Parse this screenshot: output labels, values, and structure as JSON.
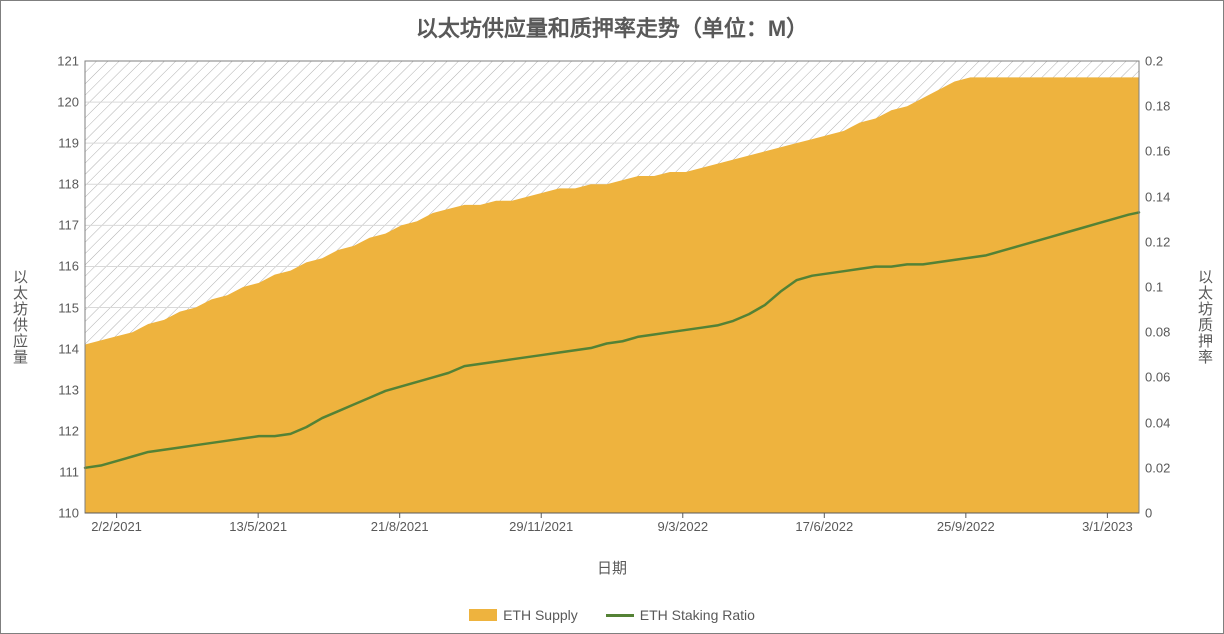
{
  "chart": {
    "type": "area+line-dual-axis",
    "title": "以太坊供应量和质押率走势（单位：M）",
    "title_fontsize": 22,
    "title_color": "#595959",
    "background_color": "#ffffff",
    "plot_border_color": "#7f7f7f",
    "grid_color": "#d9d9d9",
    "hatch_color": "#b0b0b0",
    "x_axis": {
      "label": "日期",
      "ticks": [
        "2/2/2021",
        "13/5/2021",
        "21/8/2021",
        "29/11/2021",
        "9/3/2022",
        "17/6/2022",
        "25/9/2022",
        "3/1/2023"
      ],
      "label_fontsize": 15,
      "tick_fontsize": 13,
      "label_color": "#595959"
    },
    "y_axis_left": {
      "label": "以太坊供应量",
      "min": 110,
      "max": 121,
      "tick_step": 1,
      "ticks": [
        110,
        111,
        112,
        113,
        114,
        115,
        116,
        117,
        118,
        119,
        120,
        121
      ],
      "label_fontsize": 15,
      "tick_fontsize": 13,
      "label_color": "#595959"
    },
    "y_axis_right": {
      "label": "以太坊质押率",
      "min": 0,
      "max": 0.2,
      "tick_step": 0.02,
      "ticks": [
        0,
        0.02,
        0.04,
        0.06,
        0.08,
        0.1,
        0.12,
        0.14,
        0.16,
        0.18,
        0.2
      ],
      "label_fontsize": 15,
      "tick_fontsize": 13,
      "label_color": "#595959"
    },
    "series": {
      "supply": {
        "name": "ETH Supply",
        "type": "area",
        "color": "#eeb33e",
        "fill_opacity": 1.0,
        "axis": "left",
        "data": [
          {
            "x": 0.0,
            "y": 114.1
          },
          {
            "x": 0.015,
            "y": 114.2
          },
          {
            "x": 0.03,
            "y": 114.3
          },
          {
            "x": 0.045,
            "y": 114.4
          },
          {
            "x": 0.06,
            "y": 114.6
          },
          {
            "x": 0.075,
            "y": 114.7
          },
          {
            "x": 0.09,
            "y": 114.9
          },
          {
            "x": 0.105,
            "y": 115.0
          },
          {
            "x": 0.12,
            "y": 115.2
          },
          {
            "x": 0.135,
            "y": 115.3
          },
          {
            "x": 0.15,
            "y": 115.5
          },
          {
            "x": 0.165,
            "y": 115.6
          },
          {
            "x": 0.18,
            "y": 115.8
          },
          {
            "x": 0.195,
            "y": 115.9
          },
          {
            "x": 0.21,
            "y": 116.1
          },
          {
            "x": 0.225,
            "y": 116.2
          },
          {
            "x": 0.24,
            "y": 116.4
          },
          {
            "x": 0.255,
            "y": 116.5
          },
          {
            "x": 0.27,
            "y": 116.7
          },
          {
            "x": 0.285,
            "y": 116.8
          },
          {
            "x": 0.3,
            "y": 117.0
          },
          {
            "x": 0.315,
            "y": 117.1
          },
          {
            "x": 0.33,
            "y": 117.3
          },
          {
            "x": 0.345,
            "y": 117.4
          },
          {
            "x": 0.36,
            "y": 117.5
          },
          {
            "x": 0.375,
            "y": 117.5
          },
          {
            "x": 0.39,
            "y": 117.6
          },
          {
            "x": 0.405,
            "y": 117.6
          },
          {
            "x": 0.42,
            "y": 117.7
          },
          {
            "x": 0.435,
            "y": 117.8
          },
          {
            "x": 0.45,
            "y": 117.9
          },
          {
            "x": 0.465,
            "y": 117.9
          },
          {
            "x": 0.48,
            "y": 118.0
          },
          {
            "x": 0.495,
            "y": 118.0
          },
          {
            "x": 0.51,
            "y": 118.1
          },
          {
            "x": 0.525,
            "y": 118.2
          },
          {
            "x": 0.54,
            "y": 118.2
          },
          {
            "x": 0.555,
            "y": 118.3
          },
          {
            "x": 0.57,
            "y": 118.3
          },
          {
            "x": 0.585,
            "y": 118.4
          },
          {
            "x": 0.6,
            "y": 118.5
          },
          {
            "x": 0.615,
            "y": 118.6
          },
          {
            "x": 0.63,
            "y": 118.7
          },
          {
            "x": 0.645,
            "y": 118.8
          },
          {
            "x": 0.66,
            "y": 118.9
          },
          {
            "x": 0.675,
            "y": 119.0
          },
          {
            "x": 0.69,
            "y": 119.1
          },
          {
            "x": 0.705,
            "y": 119.2
          },
          {
            "x": 0.72,
            "y": 119.3
          },
          {
            "x": 0.735,
            "y": 119.5
          },
          {
            "x": 0.75,
            "y": 119.6
          },
          {
            "x": 0.765,
            "y": 119.8
          },
          {
            "x": 0.78,
            "y": 119.9
          },
          {
            "x": 0.795,
            "y": 120.1
          },
          {
            "x": 0.81,
            "y": 120.3
          },
          {
            "x": 0.825,
            "y": 120.5
          },
          {
            "x": 0.84,
            "y": 120.6
          },
          {
            "x": 0.855,
            "y": 120.6
          },
          {
            "x": 0.87,
            "y": 120.6
          },
          {
            "x": 0.885,
            "y": 120.6
          },
          {
            "x": 0.9,
            "y": 120.6
          },
          {
            "x": 0.915,
            "y": 120.6
          },
          {
            "x": 0.93,
            "y": 120.6
          },
          {
            "x": 0.945,
            "y": 120.6
          },
          {
            "x": 0.96,
            "y": 120.6
          },
          {
            "x": 0.975,
            "y": 120.6
          },
          {
            "x": 0.99,
            "y": 120.6
          },
          {
            "x": 1.0,
            "y": 120.6
          }
        ]
      },
      "staking_ratio": {
        "name": "ETH Staking Ratio",
        "type": "line",
        "color": "#548235",
        "line_width": 2.5,
        "axis": "right",
        "data": [
          {
            "x": 0.0,
            "y": 0.02
          },
          {
            "x": 0.015,
            "y": 0.021
          },
          {
            "x": 0.03,
            "y": 0.023
          },
          {
            "x": 0.045,
            "y": 0.025
          },
          {
            "x": 0.06,
            "y": 0.027
          },
          {
            "x": 0.075,
            "y": 0.028
          },
          {
            "x": 0.09,
            "y": 0.029
          },
          {
            "x": 0.105,
            "y": 0.03
          },
          {
            "x": 0.12,
            "y": 0.031
          },
          {
            "x": 0.135,
            "y": 0.032
          },
          {
            "x": 0.15,
            "y": 0.033
          },
          {
            "x": 0.165,
            "y": 0.034
          },
          {
            "x": 0.18,
            "y": 0.034
          },
          {
            "x": 0.195,
            "y": 0.035
          },
          {
            "x": 0.21,
            "y": 0.038
          },
          {
            "x": 0.225,
            "y": 0.042
          },
          {
            "x": 0.24,
            "y": 0.045
          },
          {
            "x": 0.255,
            "y": 0.048
          },
          {
            "x": 0.27,
            "y": 0.051
          },
          {
            "x": 0.285,
            "y": 0.054
          },
          {
            "x": 0.3,
            "y": 0.056
          },
          {
            "x": 0.315,
            "y": 0.058
          },
          {
            "x": 0.33,
            "y": 0.06
          },
          {
            "x": 0.345,
            "y": 0.062
          },
          {
            "x": 0.36,
            "y": 0.065
          },
          {
            "x": 0.375,
            "y": 0.066
          },
          {
            "x": 0.39,
            "y": 0.067
          },
          {
            "x": 0.405,
            "y": 0.068
          },
          {
            "x": 0.42,
            "y": 0.069
          },
          {
            "x": 0.435,
            "y": 0.07
          },
          {
            "x": 0.45,
            "y": 0.071
          },
          {
            "x": 0.465,
            "y": 0.072
          },
          {
            "x": 0.48,
            "y": 0.073
          },
          {
            "x": 0.495,
            "y": 0.075
          },
          {
            "x": 0.51,
            "y": 0.076
          },
          {
            "x": 0.525,
            "y": 0.078
          },
          {
            "x": 0.54,
            "y": 0.079
          },
          {
            "x": 0.555,
            "y": 0.08
          },
          {
            "x": 0.57,
            "y": 0.081
          },
          {
            "x": 0.585,
            "y": 0.082
          },
          {
            "x": 0.6,
            "y": 0.083
          },
          {
            "x": 0.615,
            "y": 0.085
          },
          {
            "x": 0.63,
            "y": 0.088
          },
          {
            "x": 0.645,
            "y": 0.092
          },
          {
            "x": 0.66,
            "y": 0.098
          },
          {
            "x": 0.675,
            "y": 0.103
          },
          {
            "x": 0.69,
            "y": 0.105
          },
          {
            "x": 0.705,
            "y": 0.106
          },
          {
            "x": 0.72,
            "y": 0.107
          },
          {
            "x": 0.735,
            "y": 0.108
          },
          {
            "x": 0.75,
            "y": 0.109
          },
          {
            "x": 0.765,
            "y": 0.109
          },
          {
            "x": 0.78,
            "y": 0.11
          },
          {
            "x": 0.795,
            "y": 0.11
          },
          {
            "x": 0.81,
            "y": 0.111
          },
          {
            "x": 0.825,
            "y": 0.112
          },
          {
            "x": 0.84,
            "y": 0.113
          },
          {
            "x": 0.855,
            "y": 0.114
          },
          {
            "x": 0.87,
            "y": 0.116
          },
          {
            "x": 0.885,
            "y": 0.118
          },
          {
            "x": 0.9,
            "y": 0.12
          },
          {
            "x": 0.915,
            "y": 0.122
          },
          {
            "x": 0.93,
            "y": 0.124
          },
          {
            "x": 0.945,
            "y": 0.126
          },
          {
            "x": 0.96,
            "y": 0.128
          },
          {
            "x": 0.975,
            "y": 0.13
          },
          {
            "x": 0.99,
            "y": 0.132
          },
          {
            "x": 1.0,
            "y": 0.133
          }
        ]
      }
    },
    "legend": {
      "items": [
        {
          "key": "supply",
          "label": "ETH Supply",
          "swatch": "area",
          "color": "#eeb33e"
        },
        {
          "key": "staking_ratio",
          "label": "ETH Staking Ratio",
          "swatch": "line",
          "color": "#548235"
        }
      ],
      "fontsize": 14,
      "position": "bottom-center"
    }
  }
}
